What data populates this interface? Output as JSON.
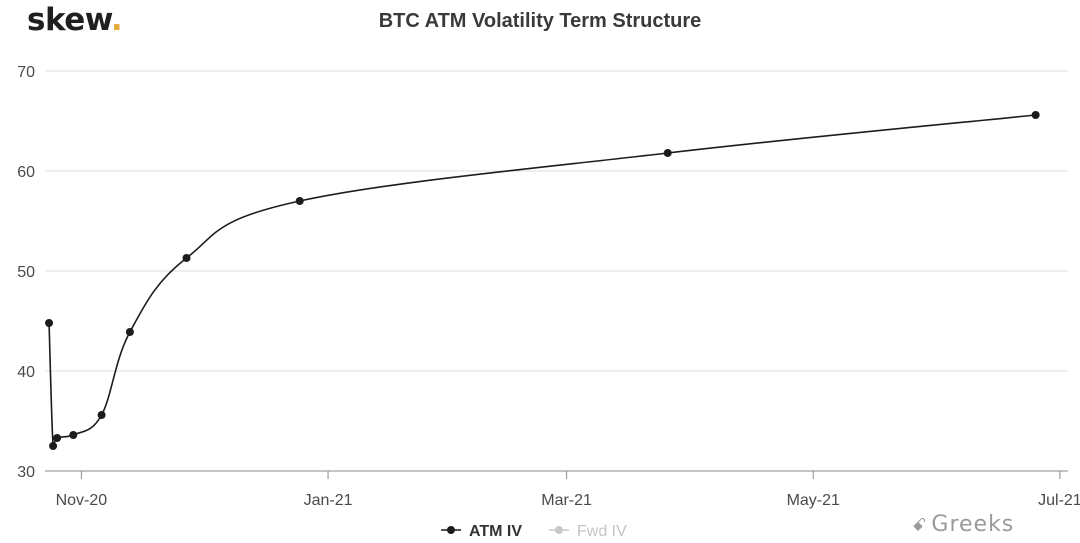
{
  "brand": {
    "logo_text": "skew",
    "logo_dot": "."
  },
  "watermark": {
    "icon": "wechat-icon",
    "icon_glyph": "ꗃ",
    "text": "Greeks"
  },
  "colors": {
    "atm": "#1c1c1c",
    "fwd": "#c8c8c8",
    "grid": "#dcdcdc",
    "accent": "#e9a83a"
  },
  "chart_data": {
    "type": "line",
    "title": "BTC ATM Volatility Term Structure",
    "xlabel": "",
    "ylabel": "",
    "ylim": [
      30,
      70
    ],
    "yticks": [
      30,
      40,
      50,
      60,
      70
    ],
    "xlim": [
      "2020-10-23",
      "2021-07-03"
    ],
    "xticks": [
      {
        "label": "Nov-20",
        "date": "2020-11-01"
      },
      {
        "label": "Jan-21",
        "date": "2021-01-01"
      },
      {
        "label": "Mar-21",
        "date": "2021-03-01"
      },
      {
        "label": "May-21",
        "date": "2021-05-01"
      },
      {
        "label": "Jul-21",
        "date": "2021-07-01"
      }
    ],
    "grid": true,
    "legend_position": "bottom-center",
    "series": [
      {
        "name": "ATM IV",
        "visible": true,
        "points": [
          {
            "x": "2020-10-24",
            "y": 44.8
          },
          {
            "x": "2020-10-25",
            "y": 32.5
          },
          {
            "x": "2020-10-26",
            "y": 33.3
          },
          {
            "x": "2020-10-30",
            "y": 33.6
          },
          {
            "x": "2020-11-06",
            "y": 35.6
          },
          {
            "x": "2020-11-13",
            "y": 43.9
          },
          {
            "x": "2020-11-27",
            "y": 51.3
          },
          {
            "x": "2020-12-25",
            "y": 57.0
          },
          {
            "x": "2021-03-26",
            "y": 61.8
          },
          {
            "x": "2021-06-25",
            "y": 65.6
          }
        ]
      },
      {
        "name": "Fwd IV",
        "visible": false,
        "points": []
      }
    ]
  }
}
